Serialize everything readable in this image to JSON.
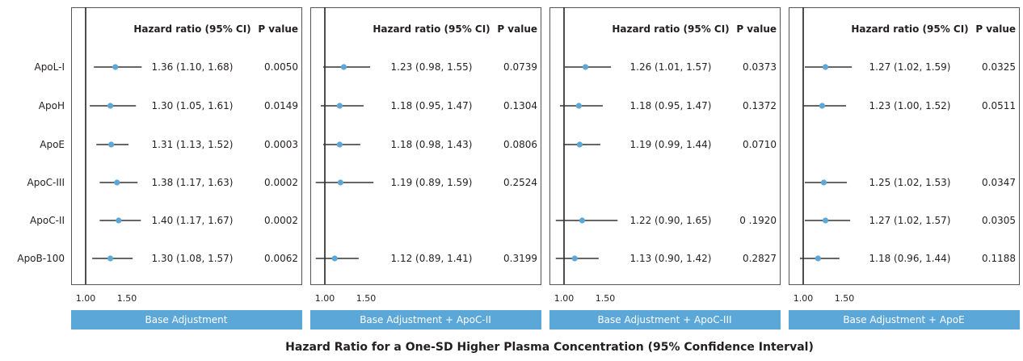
{
  "chart_data": {
    "type": "forest",
    "footer_title": "Hazard Ratio for a One-SD Higher Plasma Concentration (95% Confidence Interval)",
    "row_labels": [
      "ApoL-I",
      "ApoH",
      "ApoE",
      "ApoC-III",
      "ApoC-II",
      "ApoB-100"
    ],
    "column_headers": {
      "hr": "Hazard ratio (95% CI)",
      "p": "P value"
    },
    "x_ticks": [
      1.0,
      1.5
    ],
    "x_tick_labels": [
      "1.00",
      "1.50"
    ],
    "reference_line": 1.0,
    "x_range": [
      0.85,
      2.55
    ],
    "colors": {
      "point": "#5aa7d8",
      "line": "#333333",
      "label_bar": "#5aa7d8",
      "frame": "#555555"
    },
    "panels": [
      {
        "label": "Base Adjustment",
        "rows": [
          {
            "name": "ApoL-I",
            "hr": 1.36,
            "lo": 1.1,
            "hi": 1.68,
            "hr_text": "1.36 (1.10, 1.68)",
            "p": "0.0050"
          },
          {
            "name": "ApoH",
            "hr": 1.3,
            "lo": 1.05,
            "hi": 1.61,
            "hr_text": "1.30 (1.05, 1.61)",
            "p": "0.0149"
          },
          {
            "name": "ApoE",
            "hr": 1.31,
            "lo": 1.13,
            "hi": 1.52,
            "hr_text": "1.31 (1.13, 1.52)",
            "p": "0.0003"
          },
          {
            "name": "ApoC-III",
            "hr": 1.38,
            "lo": 1.17,
            "hi": 1.63,
            "hr_text": "1.38 (1.17, 1.63)",
            "p": "0.0002"
          },
          {
            "name": "ApoC-II",
            "hr": 1.4,
            "lo": 1.17,
            "hi": 1.67,
            "hr_text": "1.40 (1.17, 1.67)",
            "p": "0.0002"
          },
          {
            "name": "ApoB-100",
            "hr": 1.3,
            "lo": 1.08,
            "hi": 1.57,
            "hr_text": "1.30 (1.08, 1.57)",
            "p": "0.0062"
          }
        ]
      },
      {
        "label": "Base Adjustment + ApoC-II",
        "rows": [
          {
            "name": "ApoL-I",
            "hr": 1.23,
            "lo": 0.98,
            "hi": 1.55,
            "hr_text": "1.23 (0.98, 1.55)",
            "p": "0.0739"
          },
          {
            "name": "ApoH",
            "hr": 1.18,
            "lo": 0.95,
            "hi": 1.47,
            "hr_text": "1.18 (0.95, 1.47)",
            "p": "0.1304"
          },
          {
            "name": "ApoE",
            "hr": 1.18,
            "lo": 0.98,
            "hi": 1.43,
            "hr_text": "1.18 (0.98, 1.43)",
            "p": "0.0806"
          },
          {
            "name": "ApoC-III",
            "hr": 1.19,
            "lo": 0.89,
            "hi": 1.59,
            "hr_text": "1.19 (0.89, 1.59)",
            "p": "0.2524"
          },
          null,
          {
            "name": "ApoB-100",
            "hr": 1.12,
            "lo": 0.89,
            "hi": 1.41,
            "hr_text": "1.12 (0.89, 1.41)",
            "p": "0.3199"
          }
        ]
      },
      {
        "label": "Base Adjustment + ApoC-III",
        "rows": [
          {
            "name": "ApoL-I",
            "hr": 1.26,
            "lo": 1.01,
            "hi": 1.57,
            "hr_text": "1.26 (1.01, 1.57)",
            "p": "0.0373"
          },
          {
            "name": "ApoH",
            "hr": 1.18,
            "lo": 0.95,
            "hi": 1.47,
            "hr_text": "1.18 (0.95, 1.47)",
            "p": "0.1372"
          },
          {
            "name": "ApoE",
            "hr": 1.19,
            "lo": 0.99,
            "hi": 1.44,
            "hr_text": "1.19 (0.99, 1.44)",
            "p": "0.0710"
          },
          null,
          {
            "name": "ApoC-II",
            "hr": 1.22,
            "lo": 0.9,
            "hi": 1.65,
            "hr_text": "1.22 (0.90, 1.65)",
            "p": "0 .1920"
          },
          {
            "name": "ApoB-100",
            "hr": 1.13,
            "lo": 0.9,
            "hi": 1.42,
            "hr_text": "1.13 (0.90, 1.42)",
            "p": "0.2827"
          }
        ]
      },
      {
        "label": "Base Adjustment + ApoE",
        "rows": [
          {
            "name": "ApoL-I",
            "hr": 1.27,
            "lo": 1.02,
            "hi": 1.59,
            "hr_text": "1.27 (1.02, 1.59)",
            "p": "0.0325"
          },
          {
            "name": "ApoH",
            "hr": 1.23,
            "lo": 1.0,
            "hi": 1.52,
            "hr_text": "1.23 (1.00, 1.52)",
            "p": "0.0511"
          },
          null,
          {
            "name": "ApoC-III",
            "hr": 1.25,
            "lo": 1.02,
            "hi": 1.53,
            "hr_text": "1.25 (1.02, 1.53)",
            "p": "0.0347"
          },
          {
            "name": "ApoC-II",
            "hr": 1.27,
            "lo": 1.02,
            "hi": 1.57,
            "hr_text": "1.27 (1.02, 1.57)",
            "p": "0.0305"
          },
          {
            "name": "ApoB-100",
            "hr": 1.18,
            "lo": 0.96,
            "hi": 1.44,
            "hr_text": "1.18 (0.96, 1.44)",
            "p": "0.1188"
          }
        ]
      }
    ]
  }
}
